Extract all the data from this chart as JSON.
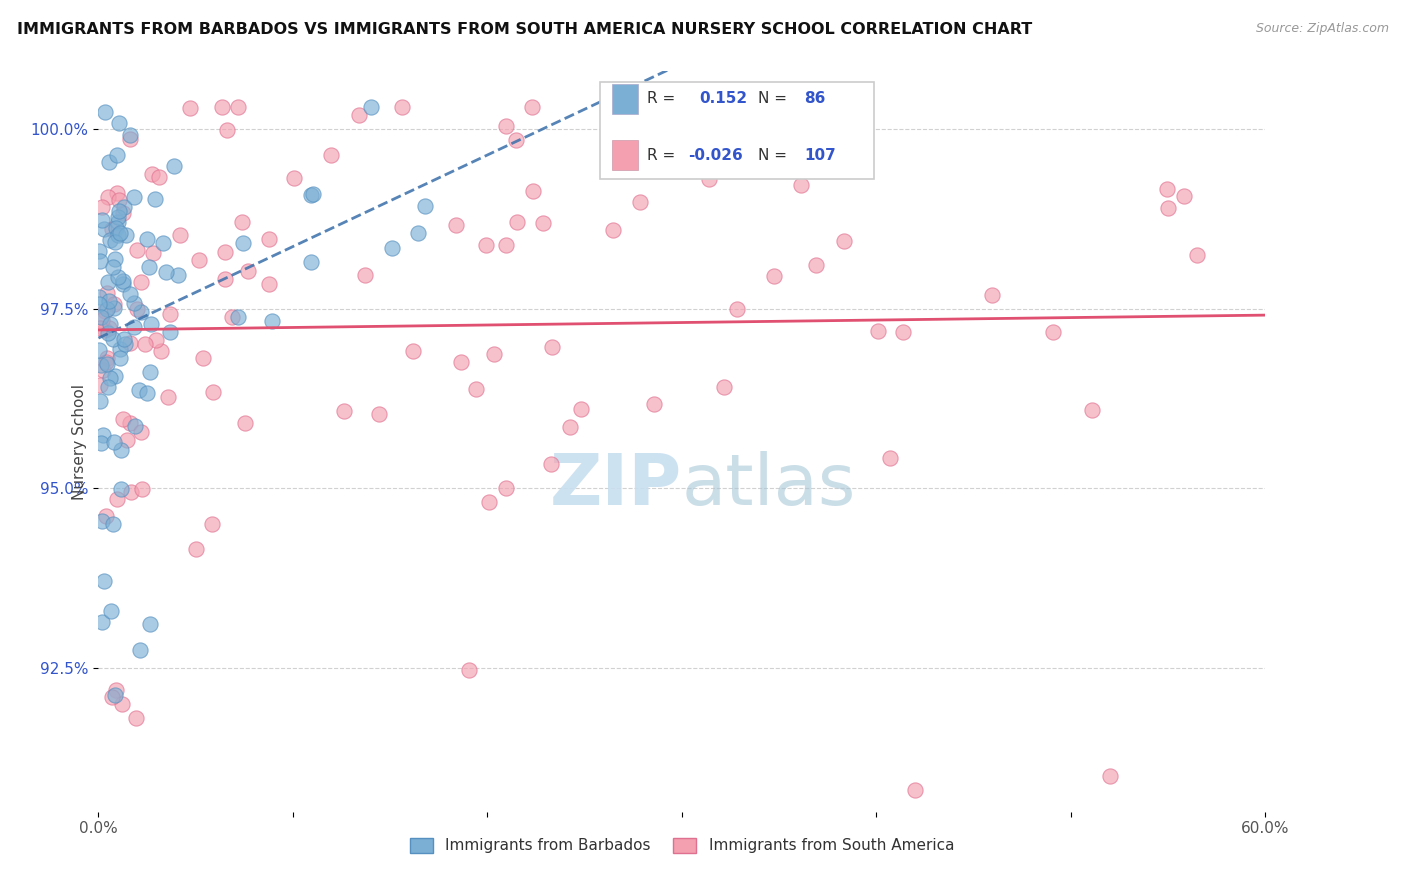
{
  "title": "IMMIGRANTS FROM BARBADOS VS IMMIGRANTS FROM SOUTH AMERICA NURSERY SCHOOL CORRELATION CHART",
  "source_text": "Source: ZipAtlas.com",
  "ylabel": "Nursery School",
  "ytick_labels": [
    "100.0%",
    "97.5%",
    "95.0%",
    "92.5%"
  ],
  "ytick_values": [
    1.0,
    0.975,
    0.95,
    0.925
  ],
  "legend_label1": "Immigrants from Barbados",
  "legend_label2": "Immigrants from South America",
  "legend_R1": "0.152",
  "legend_N1": "86",
  "legend_R2": "-0.026",
  "legend_N2": "107",
  "color_blue": "#7bafd4",
  "color_blue_edge": "#5590c0",
  "color_pink": "#f4a0b0",
  "color_pink_edge": "#e07090",
  "color_trend_blue": "#3a6faa",
  "color_trend_pink": "#e05070",
  "color_axis_blue": "#3355cc",
  "color_title": "#111111",
  "color_source": "#999999",
  "watermark_color": "#c8dff0",
  "xmin": 0.0,
  "xmax": 0.6,
  "ymin": 0.905,
  "ymax": 1.008
}
